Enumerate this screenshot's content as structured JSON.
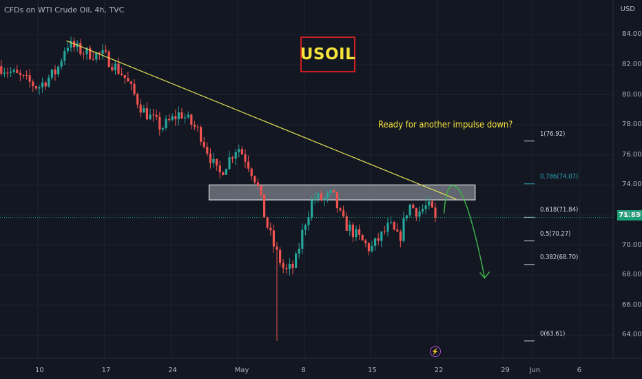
{
  "header": {
    "title": "CFDs on WTI Crude Oil, 4h, TVC",
    "currency": "USD"
  },
  "symbol_label": "USOIL",
  "annotation": "Ready for another impulse down?",
  "current_price": "71.83",
  "colors": {
    "background": "#131722",
    "up_candle": "#26a69a",
    "down_candle": "#ef5350",
    "trendline": "#e6e054",
    "projection": "#3cb34a",
    "price_tag": "#1a9e73",
    "fib_0786": "#2ba5b5"
  },
  "chart_data": {
    "type": "candlestick",
    "y_axis": {
      "ticks": [
        "84.00",
        "82.00",
        "80.00",
        "78.00",
        "76.00",
        "74.00",
        "72.00",
        "70.00",
        "68.00",
        "66.00",
        "64.00"
      ],
      "range": [
        62.8,
        85.6
      ],
      "position": "right"
    },
    "x_axis": {
      "ticks": [
        "10",
        "17",
        "24",
        "May",
        "8",
        "15",
        "22",
        "29",
        "Jun",
        "6"
      ]
    },
    "grid": true,
    "fibonacci_levels": [
      {
        "label": "1(76.92)",
        "value": 76.92
      },
      {
        "label": "0.786(74.07)",
        "value": 74.07
      },
      {
        "label": "0.618(71.84)",
        "value": 71.84
      },
      {
        "label": "0.5(70.27)",
        "value": 70.27
      },
      {
        "label": "0.382(68.70)",
        "value": 68.7
      },
      {
        "label": "0(63.61)",
        "value": 63.61
      }
    ],
    "resistance_zone": {
      "low": 73.0,
      "high": 74.0,
      "from": "Apr 28",
      "to": "May 26"
    },
    "trendline": {
      "from": {
        "date": "Apr 13",
        "price": 83.6
      },
      "to": {
        "date": "May 24",
        "price": 73.05
      }
    },
    "projection": {
      "from": {
        "date": "May 22",
        "price": 72.1
      },
      "peak": {
        "date": "May 24",
        "price": 73.6
      },
      "to": {
        "date": "May 27",
        "price": 67.8
      }
    },
    "price_anchors": [
      {
        "date": "Apr 6",
        "price": 81.9
      },
      {
        "date": "Apr 8",
        "price": 81.2
      },
      {
        "date": "Apr 10",
        "price": 80.5
      },
      {
        "date": "Apr 12",
        "price": 81.6
      },
      {
        "date": "Apr 13",
        "price": 83.4
      },
      {
        "date": "Apr 15",
        "price": 82.8
      },
      {
        "date": "Apr 17",
        "price": 82.6
      },
      {
        "date": "Apr 19",
        "price": 81.3
      },
      {
        "date": "Apr 21",
        "price": 79.0
      },
      {
        "date": "Apr 23",
        "price": 77.8
      },
      {
        "date": "Apr 25",
        "price": 78.8
      },
      {
        "date": "Apr 27",
        "price": 77.5
      },
      {
        "date": "Apr 29",
        "price": 74.6
      },
      {
        "date": "May 1",
        "price": 76.6
      },
      {
        "date": "May 2",
        "price": 75.6
      },
      {
        "date": "May 3",
        "price": 74.2
      },
      {
        "date": "May 4",
        "price": 71.5
      },
      {
        "date": "May 5",
        "price": 69.6
      },
      {
        "date": "May 6",
        "price": 68.2
      },
      {
        "date": "May 7",
        "price": 68.6
      },
      {
        "date": "May 8",
        "price": 71.3
      },
      {
        "date": "May 9",
        "price": 73.2
      },
      {
        "date": "May 10",
        "price": 73.0
      },
      {
        "date": "May 11",
        "price": 73.4
      },
      {
        "date": "May 12",
        "price": 71.6
      },
      {
        "date": "May 14",
        "price": 70.3
      },
      {
        "date": "May 15",
        "price": 69.7
      },
      {
        "date": "May 17",
        "price": 71.3
      },
      {
        "date": "May 18",
        "price": 70.3
      },
      {
        "date": "May 19",
        "price": 72.7
      },
      {
        "date": "May 20",
        "price": 72.2
      },
      {
        "date": "May 21",
        "price": 72.6
      },
      {
        "date": "May 22",
        "price": 71.8
      }
    ],
    "spike_low": {
      "date": "May 5",
      "price": 63.61
    }
  }
}
